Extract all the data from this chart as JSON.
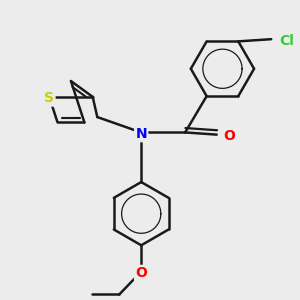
{
  "background_color": "#ececec",
  "bond_color": "#1a1a1a",
  "bond_width": 1.8,
  "atom_colors": {
    "S": "#cccc00",
    "N": "#0000ff",
    "O": "#ff0000",
    "Cl": "#33cc33",
    "C": "#1a1a1a"
  },
  "font_size": 10,
  "xlim": [
    -2.8,
    3.2
  ],
  "ylim": [
    -3.8,
    3.0
  ]
}
